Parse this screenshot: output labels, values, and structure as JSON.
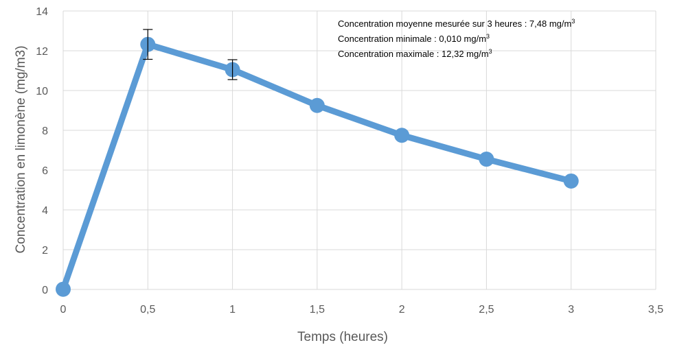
{
  "chart_data": {
    "type": "line",
    "xlabel": "Temps (heures)",
    "ylabel": "Concentration en limonène (mg/m3)",
    "xlim": [
      0,
      3.5
    ],
    "ylim": [
      0,
      14
    ],
    "x_ticks": [
      "0",
      "0,5",
      "1",
      "1,5",
      "2",
      "2,5",
      "3",
      "3,5"
    ],
    "y_ticks": [
      "0",
      "2",
      "4",
      "6",
      "8",
      "10",
      "12",
      "14"
    ],
    "grid": "vertical and horizontal",
    "series": [
      {
        "x": [
          0,
          0.5,
          1,
          1.5,
          2,
          2.5,
          3
        ],
        "y": [
          0.01,
          12.32,
          11.05,
          9.25,
          7.75,
          6.55,
          5.45
        ],
        "error": [
          null,
          0.75,
          0.5,
          null,
          null,
          null,
          null
        ],
        "color": "#5B9BD5"
      }
    ],
    "annotations": [
      {
        "text": "Concentration moyenne mesurée sur 3 heures : 7,48 mg/m",
        "sup": "3"
      },
      {
        "text": "Concentration minimale : 0,010 mg/m",
        "sup": "3"
      },
      {
        "text": "Concentration maximale : 12,32 mg/m",
        "sup": "3"
      }
    ]
  }
}
